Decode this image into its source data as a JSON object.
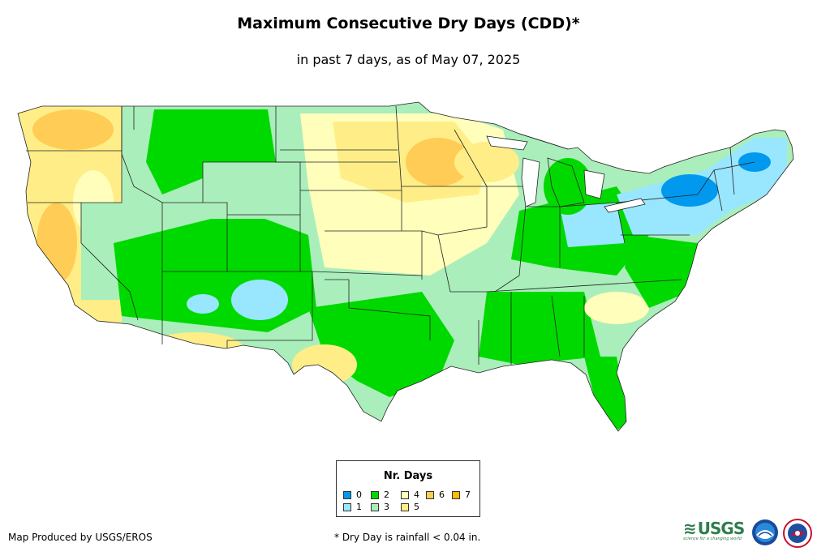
{
  "title": "Maximum Consecutive Dry Days (CDD)*",
  "subtitle": "in past 7 days, as of May 07, 2025",
  "legend": {
    "title": "Nr. Days",
    "items": [
      {
        "label": "0",
        "color": "#0099ee"
      },
      {
        "label": "1",
        "color": "#99e6ff"
      },
      {
        "label": "2",
        "color": "#00d900"
      },
      {
        "label": "3",
        "color": "#aaeebb"
      },
      {
        "label": "4",
        "color": "#ffffbb"
      },
      {
        "label": "5",
        "color": "#ffee88"
      },
      {
        "label": "6",
        "color": "#ffcc55"
      },
      {
        "label": "7",
        "color": "#ffbb00"
      }
    ]
  },
  "footer": {
    "producer": "Map Produced by USGS/EROS",
    "note": "* Dry Day is rainfall < 0.04 in."
  },
  "logos": {
    "usgs": "USGS",
    "usgs_tagline": "science for a changing world",
    "noaa": "noaa-logo",
    "nws": "nws-logo"
  }
}
